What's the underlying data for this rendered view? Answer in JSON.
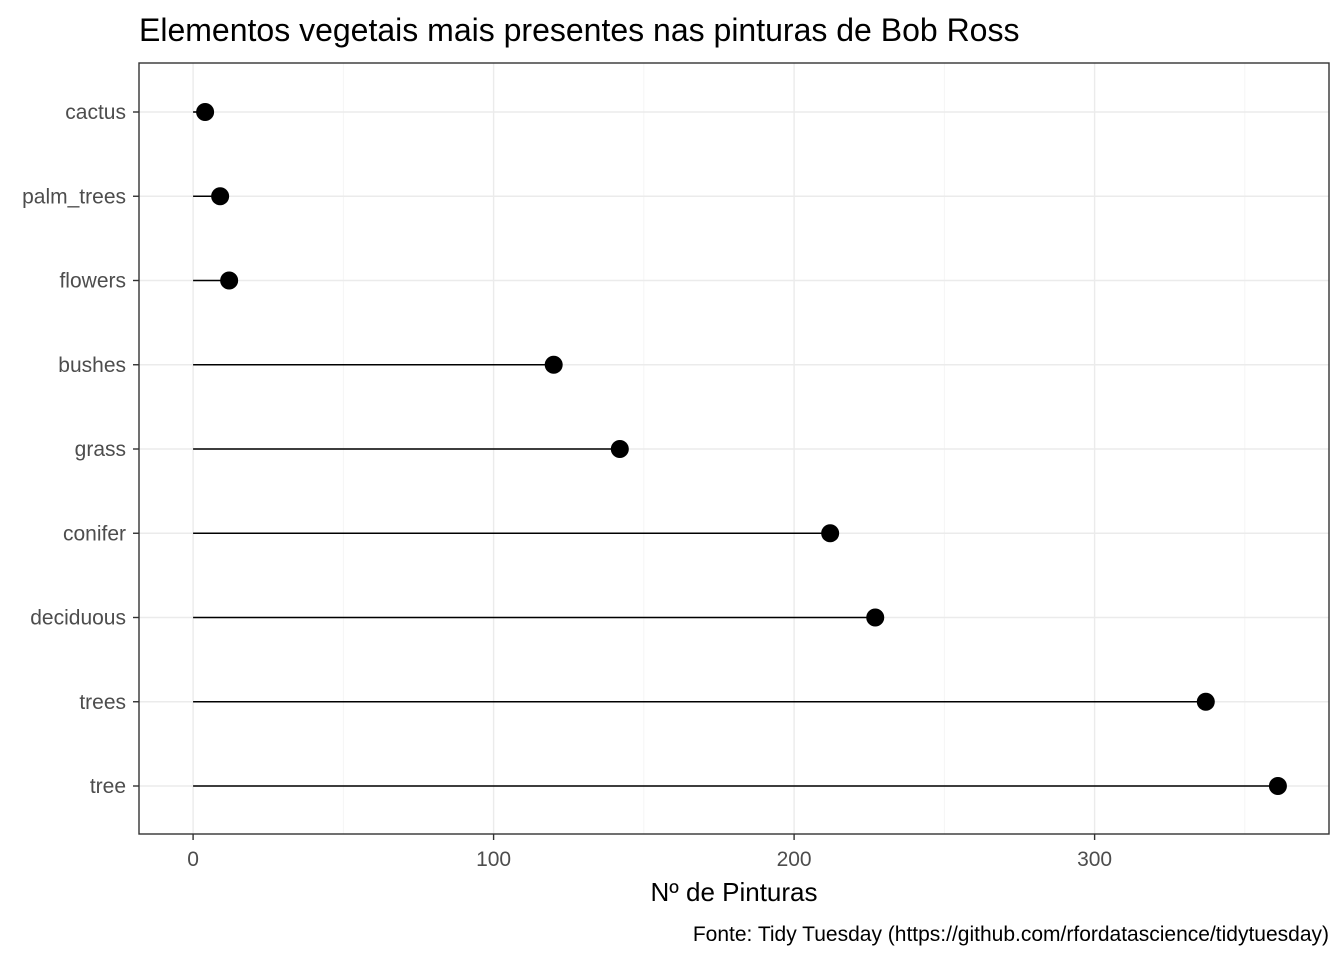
{
  "chart_data": {
    "type": "lollipop",
    "title": "Elementos vegetais mais presentes nas pinturas de Bob Ross",
    "xlabel": "Nº de Pinturas",
    "ylabel": "",
    "caption": "Fonte: Tidy Tuesday (https://github.com/rfordatascience/tidytuesday)",
    "categories": [
      "cactus",
      "palm_trees",
      "flowers",
      "bushes",
      "grass",
      "conifer",
      "deciduous",
      "trees",
      "tree"
    ],
    "values": [
      4,
      9,
      12,
      120,
      142,
      212,
      227,
      337,
      361
    ],
    "xlim": [
      -18,
      378
    ],
    "xticks": [
      0,
      100,
      200,
      300
    ],
    "xtick_labels": [
      "0",
      "100",
      "200",
      "300"
    ],
    "grid": true,
    "legend": "none",
    "colors": {
      "point": "#000000",
      "stem": "#000000",
      "grid": "#ebebeb",
      "border": "#333333",
      "tick_text": "#4d4d4d"
    }
  }
}
